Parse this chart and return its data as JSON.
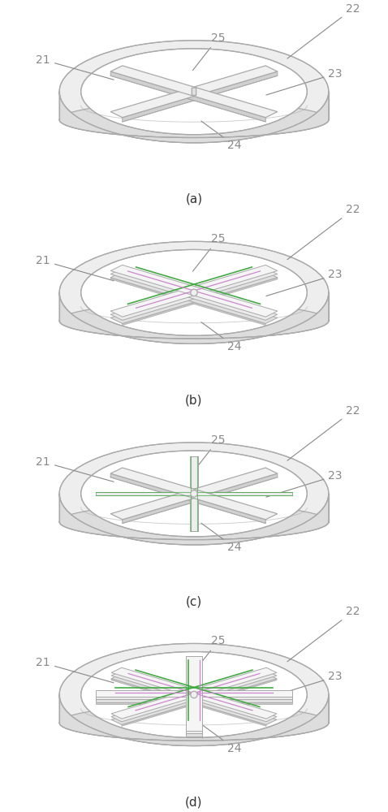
{
  "bg": "#ffffff",
  "lc": "#aaaaaa",
  "lc_dark": "#888888",
  "lc_edge": "#999999",
  "beam_top": "#f2f2f2",
  "beam_side": "#d8d8d8",
  "beam_top2": "#ebebeb",
  "hub_fill": "#e8e8e8",
  "green": "#44aa44",
  "pink": "#cc88cc",
  "panels": [
    "(a)",
    "(b)",
    "(c)",
    "(d)"
  ],
  "label_fs": 10,
  "panel_fs": 11
}
